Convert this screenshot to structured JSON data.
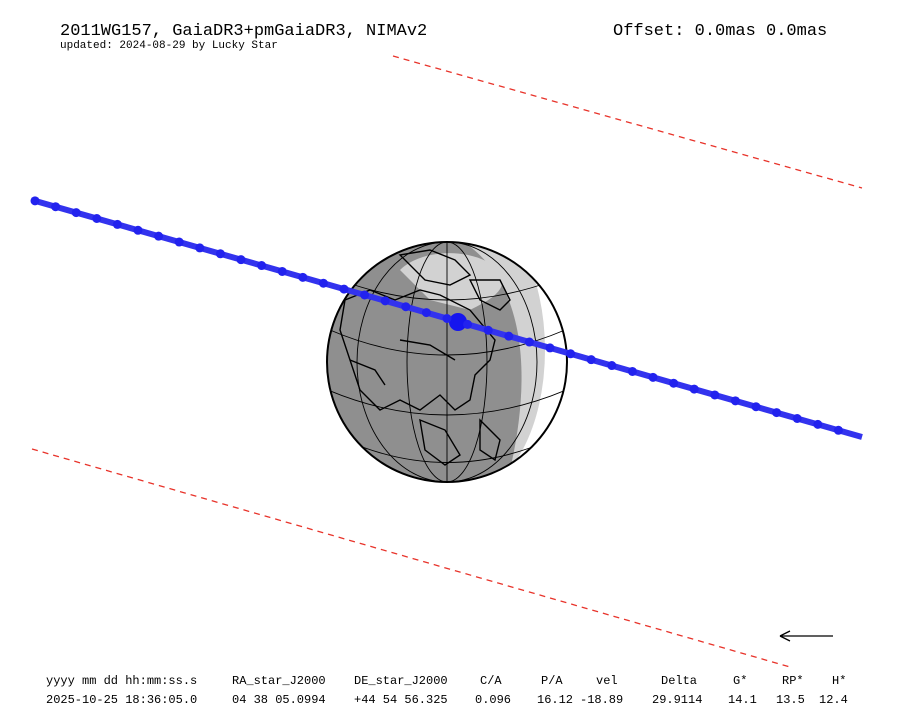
{
  "header": {
    "title": "2011WG157, GaiaDR3+pmGaiaDR3, NIMAv2",
    "updated": "updated: 2024-08-29 by Lucky Star",
    "offset": "Offset: 0.0mas 0.0mas"
  },
  "table": {
    "columns": [
      "yyyy mm dd hh:mm:ss.s",
      "RA_star_J2000",
      "DE_star_J2000",
      "C/A",
      "P/A",
      "vel",
      "Delta",
      "G*",
      "RP*",
      "H*"
    ],
    "rows": [
      [
        "2025-10-25 18:36:05.0",
        "04 38 05.0994",
        "+44 54 56.325",
        "0.096",
        "16.12",
        "-18.89",
        "29.9114",
        "14.1",
        "13.5",
        "12.4"
      ]
    ]
  }
}
